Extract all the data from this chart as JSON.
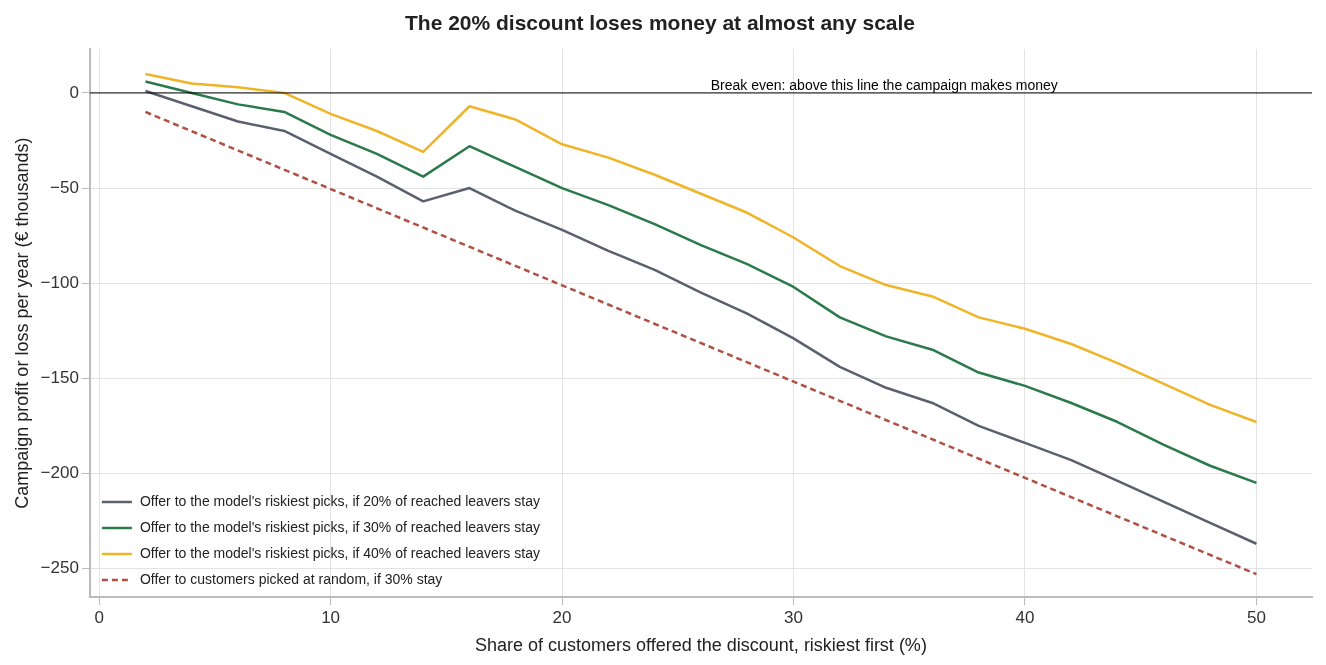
{
  "chart_data": {
    "type": "line",
    "title": "The 20% discount loses money at almost any scale",
    "xlabel": "Share of customers offered the discount, riskiest first (%)",
    "ylabel": "Campaign profit or loss per year (€ thousands)",
    "x": [
      2,
      4,
      6,
      8,
      10,
      12,
      14,
      16,
      18,
      20,
      22,
      24,
      26,
      28,
      30,
      32,
      34,
      36,
      38,
      40,
      42,
      44,
      46,
      48,
      50
    ],
    "series": [
      {
        "name": "Offer to the model's riskiest picks, if 20% of reached leavers stay",
        "color": "#5b6070",
        "values": [
          1,
          -7,
          -15,
          -20,
          -32,
          -44,
          -57,
          -50,
          -62,
          -72,
          -83,
          -93,
          -105,
          -116,
          -129,
          -144,
          -155,
          -163,
          -175,
          -184,
          -193,
          -204,
          -215,
          -226,
          -237
        ]
      },
      {
        "name": "Offer to the model's riskiest picks, if 30% of reached leavers stay",
        "color": "#2a7a4b",
        "values": [
          6,
          0,
          -6,
          -10,
          -22,
          -32,
          -44,
          -28,
          -39,
          -50,
          -59,
          -69,
          -80,
          -90,
          -102,
          -118,
          -128,
          -135,
          -147,
          -154,
          -163,
          -173,
          -185,
          -196,
          -205
        ]
      },
      {
        "name": "Offer to the model's riskiest picks, if 40% of reached leavers stay",
        "color": "#f0b429",
        "values": [
          10,
          5,
          3,
          0,
          -11,
          -20,
          -31,
          -7,
          -14,
          -27,
          -34,
          -43,
          -53,
          -63,
          -76,
          -91,
          -101,
          -107,
          -118,
          -124,
          -132,
          -142,
          -153,
          -164,
          -173
        ]
      },
      {
        "name": "Offer to customers picked at random, if 30% stay",
        "color": "#b05045",
        "x": [
          2,
          50
        ],
        "values": [
          -10,
          -253
        ],
        "line_style": "dashed"
      }
    ],
    "xlim": [
      -0.4,
      52.4
    ],
    "xticks": [
      0,
      10,
      20,
      30,
      40,
      50
    ],
    "ylim": [
      -265,
      23
    ],
    "yticks": [
      -250,
      -200,
      -150,
      -100,
      -50,
      0
    ],
    "ref_lines": [
      {
        "axis": "y",
        "value": 0,
        "label": "Break even: above this line the campaign makes money",
        "color": "#000000"
      }
    ],
    "grid": true,
    "legend": "bottom left",
    "marker": "none",
    "line_style": "solid"
  }
}
